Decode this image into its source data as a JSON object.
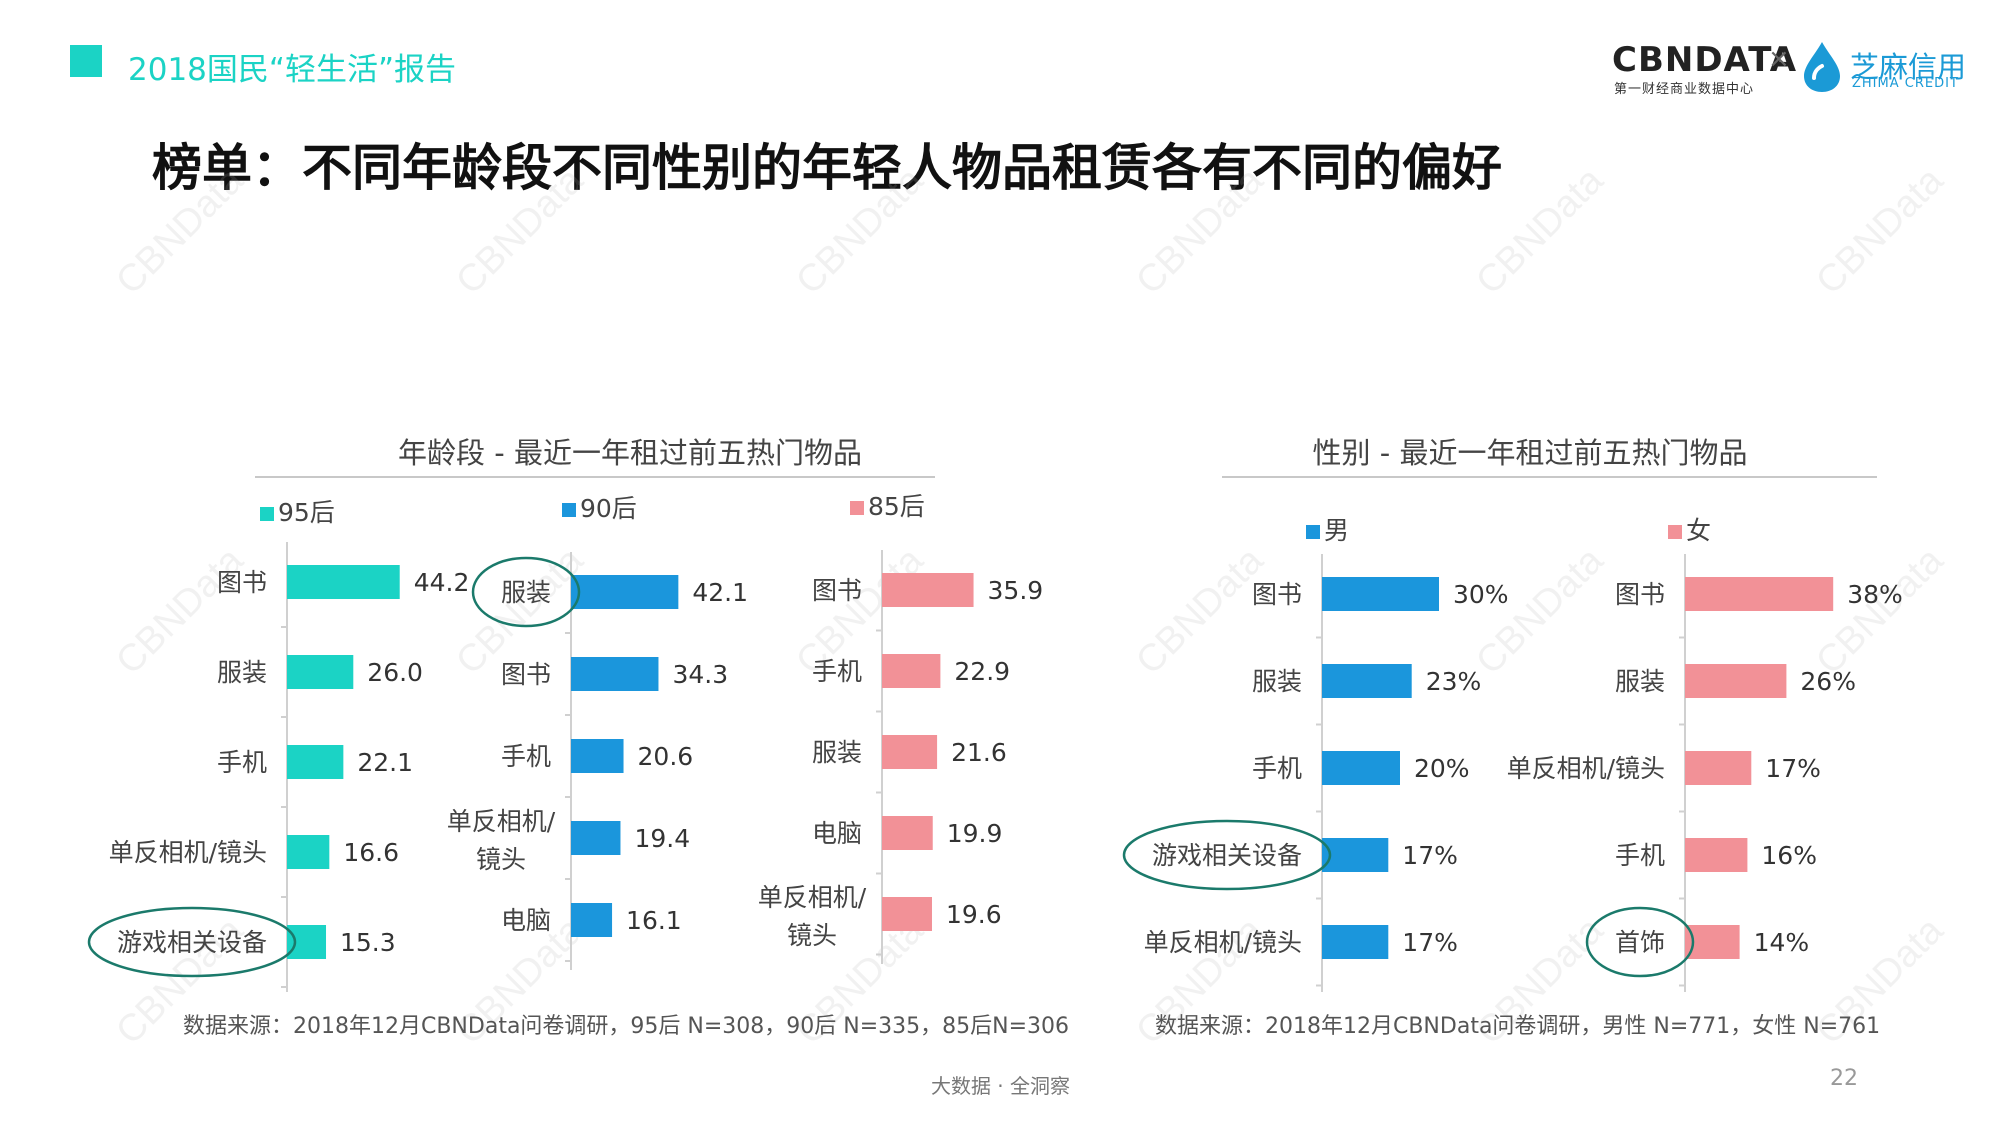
{
  "header": {
    "title": "2018国民“轻生活”报告",
    "accent_color": "#1bd3c5"
  },
  "logos": {
    "cbn_text": "CBNDATA",
    "cbn_subtitle": "第一财经商业数据中心",
    "times": "×",
    "zhima_text": "芝麻信用",
    "zhima_subtitle": "ZHIMA CREDIT"
  },
  "main_title": "榜单：不同年龄段不同性别的年轻人物品租赁各有不同的偏好",
  "watermark": "CBNData",
  "age_panel": {
    "title": "年龄段 - 最近一年租过前五热门物品",
    "source": "数据来源：2018年12月CBNData问卷调研，95后 N=308，90后 N=335，85后N=306"
  },
  "gender_panel": {
    "title": "性别 - 最近一年租过前五热门物品",
    "source": "数据来源：2018年12月CBNData问卷调研，男性 N=771，女性 N=761"
  },
  "chart_data": [
    {
      "type": "bar",
      "orientation": "horizontal",
      "name": "95后",
      "color": "#1bd3c5",
      "categories": [
        "图书",
        "服装",
        "手机",
        "单反相机/镜头",
        "游戏相关设备"
      ],
      "values": [
        44.2,
        26.0,
        22.1,
        16.6,
        15.3
      ],
      "value_labels": [
        "44.2",
        "26.0",
        "22.1",
        "16.6",
        "15.3"
      ],
      "circled": [
        "游戏相关设备"
      ]
    },
    {
      "type": "bar",
      "orientation": "horizontal",
      "name": "90后",
      "color": "#1b96dc",
      "categories": [
        "服装",
        "图书",
        "手机",
        "单反相机/镜头",
        "电脑"
      ],
      "values": [
        42.1,
        34.3,
        20.6,
        19.4,
        16.1
      ],
      "value_labels": [
        "42.1",
        "34.3",
        "20.6",
        "19.4",
        "16.1"
      ],
      "circled": [
        "服装"
      ]
    },
    {
      "type": "bar",
      "orientation": "horizontal",
      "name": "85后",
      "color": "#f29197",
      "categories": [
        "图书",
        "手机",
        "服装",
        "电脑",
        "单反相机/镜头"
      ],
      "values": [
        35.9,
        22.9,
        21.6,
        19.9,
        19.6
      ],
      "value_labels": [
        "35.9",
        "22.9",
        "21.6",
        "19.9",
        "19.6"
      ],
      "circled": []
    },
    {
      "type": "bar",
      "orientation": "horizontal",
      "name": "男",
      "color": "#1b96dc",
      "categories": [
        "图书",
        "服装",
        "手机",
        "游戏相关设备",
        "单反相机/镜头"
      ],
      "values": [
        30,
        23,
        20,
        17,
        17
      ],
      "value_labels": [
        "30%",
        "23%",
        "20%",
        "17%",
        "17%"
      ],
      "circled": [
        "游戏相关设备"
      ]
    },
    {
      "type": "bar",
      "orientation": "horizontal",
      "name": "女",
      "color": "#f29197",
      "categories": [
        "图书",
        "服装",
        "单反相机/镜头",
        "手机",
        "首饰"
      ],
      "values": [
        38,
        26,
        17,
        16,
        14
      ],
      "value_labels": [
        "38%",
        "26%",
        "17%",
        "16%",
        "14%"
      ],
      "circled": [
        "首饰"
      ]
    }
  ],
  "footer": {
    "text": "大数据 · 全洞察",
    "page_number": "22"
  },
  "circle_color": "#1b7a6b"
}
